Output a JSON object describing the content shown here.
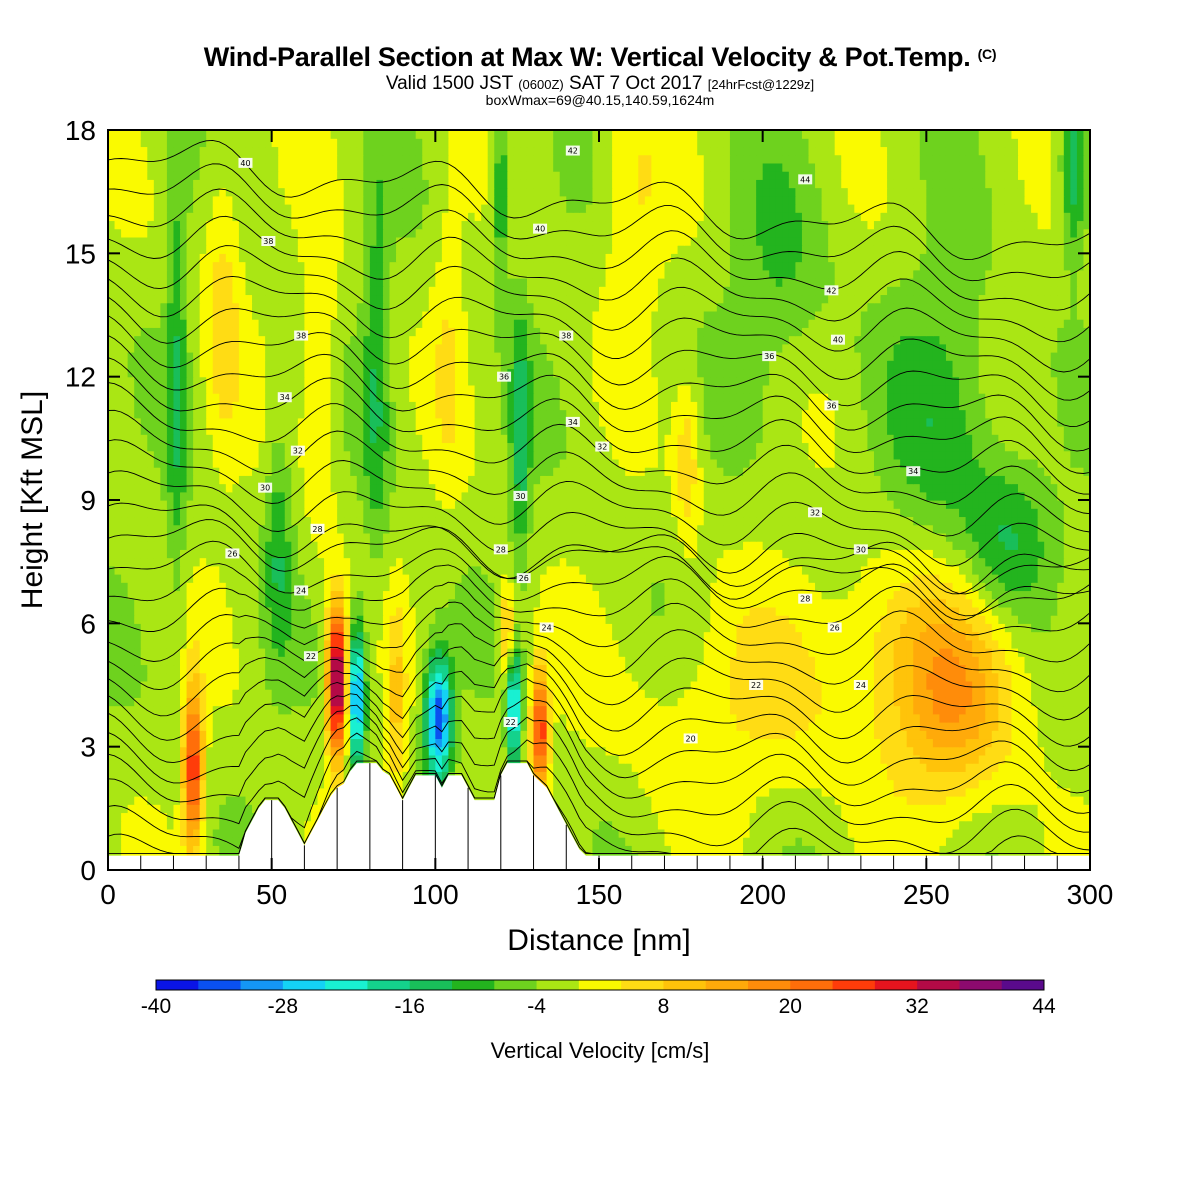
{
  "chart_data": {
    "type": "heatmap",
    "title": "Wind-Parallel Section at Max W: Vertical Velocity & Pot.Temp.",
    "title_mark": "(C)",
    "subtitle_parts": [
      "Valid 1500 JST ",
      "(0600Z)",
      " SAT 7 Oct 2017 ",
      "[24hrFcst@1229z]"
    ],
    "info_line": "boxWmax=69@40.15,140.59,1624m",
    "xlabel": "Distance [nm]",
    "ylabel": "Height [Kft MSL]",
    "xlim": [
      0,
      300
    ],
    "ylim": [
      0,
      18
    ],
    "xticks": [
      0,
      50,
      100,
      150,
      200,
      250,
      300
    ],
    "yticks": [
      0,
      3,
      6,
      9,
      12,
      15,
      18
    ],
    "colorbar": {
      "title": "Vertical Velocity [cm/s]",
      "boundaries": [
        -40,
        -36,
        -32,
        -28,
        -24,
        -20,
        -16,
        -12,
        -8,
        -4,
        0,
        4,
        8,
        12,
        16,
        20,
        24,
        28,
        32,
        36,
        40,
        44
      ],
      "labels": [
        -40,
        -28,
        -16,
        -4,
        8,
        20,
        32,
        44
      ],
      "colors": [
        "#0a14e6",
        "#0a50f0",
        "#1496f5",
        "#14d2f5",
        "#19f0d2",
        "#14d28c",
        "#19be5a",
        "#23b41e",
        "#6ed21e",
        "#aae614",
        "#fafa00",
        "#ffdc14",
        "#ffc30a",
        "#ffaa0a",
        "#ff8c0a",
        "#ff6e0a",
        "#ff3c0a",
        "#e6141e",
        "#b40a46",
        "#8c0a6e",
        "#5a0a8c"
      ]
    },
    "background_level": -2,
    "vv_blobs": [
      {
        "x": 26,
        "y": 2.5,
        "sx": 3,
        "sy": 2.0,
        "v": 30
      },
      {
        "x": 70,
        "y": 4.6,
        "sx": 3,
        "sy": 1.8,
        "v": 44
      },
      {
        "x": 76,
        "y": 4.2,
        "sx": 2.5,
        "sy": 1.8,
        "v": -30
      },
      {
        "x": 101,
        "y": 3.7,
        "sx": 4,
        "sy": 1.5,
        "v": -34
      },
      {
        "x": 124,
        "y": 3.9,
        "sx": 2,
        "sy": 1.5,
        "v": -26
      },
      {
        "x": 132,
        "y": 3.4,
        "sx": 2.5,
        "sy": 1.5,
        "v": 30
      },
      {
        "x": 122,
        "y": 5.8,
        "sx": 2.5,
        "sy": 1.2,
        "v": 14
      },
      {
        "x": 88,
        "y": 3.8,
        "sx": 3,
        "sy": 2.5,
        "v": 10
      },
      {
        "x": 258,
        "y": 3.8,
        "sx": 18,
        "sy": 2.5,
        "v": 13
      },
      {
        "x": 245,
        "y": 5.5,
        "sx": 40,
        "sy": 2.5,
        "v": 7
      },
      {
        "x": 190,
        "y": 3.5,
        "sx": 40,
        "sy": 2.5,
        "v": 5
      },
      {
        "x": 275,
        "y": 8.0,
        "sx": 14,
        "sy": 2.0,
        "v": -10
      },
      {
        "x": 255,
        "y": 11.0,
        "sx": 18,
        "sy": 3.5,
        "v": -8
      },
      {
        "x": 35,
        "y": 14.0,
        "sx": 6,
        "sy": 4.0,
        "v": 8
      },
      {
        "x": 65,
        "y": 12.0,
        "sx": 5,
        "sy": 4.0,
        "v": 8
      },
      {
        "x": 21,
        "y": 12.0,
        "sx": 3,
        "sy": 6.0,
        "v": -9
      },
      {
        "x": 82,
        "y": 12.0,
        "sx": 4,
        "sy": 5.0,
        "v": -9
      },
      {
        "x": 126,
        "y": 10.5,
        "sx": 3,
        "sy": 3.0,
        "v": -12
      },
      {
        "x": 120,
        "y": 16.5,
        "sx": 3,
        "sy": 2.0,
        "v": -12
      },
      {
        "x": 177,
        "y": 10.0,
        "sx": 4,
        "sy": 2.0,
        "v": 9
      },
      {
        "x": 160,
        "y": 16.0,
        "sx": 10,
        "sy": 3.0,
        "v": 6
      },
      {
        "x": 205,
        "y": 14.5,
        "sx": 15,
        "sy": 3.0,
        "v": -6
      },
      {
        "x": 295,
        "y": 17.0,
        "sx": 4,
        "sy": 2.0,
        "v": -14
      },
      {
        "x": 104,
        "y": 13.0,
        "sx": 5,
        "sy": 4.0,
        "v": 5
      },
      {
        "x": 52,
        "y": 8.0,
        "sx": 4,
        "sy": 3.0,
        "v": -9
      }
    ],
    "theta_contours": {
      "base_levels": [
        16,
        17,
        18,
        19,
        20,
        21,
        22,
        23,
        24,
        25,
        26,
        27,
        28,
        29,
        30,
        31,
        32,
        33,
        34,
        35,
        36,
        37,
        38,
        39,
        40,
        41,
        42,
        43,
        44,
        45
      ],
      "labeled": [
        {
          "text": "20",
          "x": 178,
          "y": 3.2
        },
        {
          "text": "22",
          "x": 62,
          "y": 5.2
        },
        {
          "text": "22",
          "x": 198,
          "y": 4.5
        },
        {
          "text": "22",
          "x": 123,
          "y": 3.6
        },
        {
          "text": "24",
          "x": 59,
          "y": 6.8
        },
        {
          "text": "24",
          "x": 134,
          "y": 5.9
        },
        {
          "text": "24",
          "x": 230,
          "y": 4.5
        },
        {
          "text": "26",
          "x": 127,
          "y": 7.1
        },
        {
          "text": "26",
          "x": 222,
          "y": 5.9
        },
        {
          "text": "26",
          "x": 38,
          "y": 7.7
        },
        {
          "text": "28",
          "x": 64,
          "y": 8.3
        },
        {
          "text": "28",
          "x": 120,
          "y": 7.8
        },
        {
          "text": "28",
          "x": 213,
          "y": 6.6
        },
        {
          "text": "30",
          "x": 48,
          "y": 9.3
        },
        {
          "text": "30",
          "x": 126,
          "y": 9.1
        },
        {
          "text": "30",
          "x": 230,
          "y": 7.8
        },
        {
          "text": "32",
          "x": 58,
          "y": 10.2
        },
        {
          "text": "32",
          "x": 151,
          "y": 10.3
        },
        {
          "text": "32",
          "x": 216,
          "y": 8.7
        },
        {
          "text": "34",
          "x": 54,
          "y": 11.5
        },
        {
          "text": "34",
          "x": 142,
          "y": 10.9
        },
        {
          "text": "34",
          "x": 246,
          "y": 9.7
        },
        {
          "text": "36",
          "x": 121,
          "y": 12.0
        },
        {
          "text": "36",
          "x": 202,
          "y": 12.5
        },
        {
          "text": "36",
          "x": 221,
          "y": 11.3
        },
        {
          "text": "38",
          "x": 49,
          "y": 15.3
        },
        {
          "text": "38",
          "x": 59,
          "y": 13.0
        },
        {
          "text": "38",
          "x": 140,
          "y": 13.0
        },
        {
          "text": "40",
          "x": 42,
          "y": 17.2
        },
        {
          "text": "40",
          "x": 132,
          "y": 15.6
        },
        {
          "text": "40",
          "x": 223,
          "y": 12.9
        },
        {
          "text": "42",
          "x": 142,
          "y": 17.5
        },
        {
          "text": "42",
          "x": 221,
          "y": 14.1
        },
        {
          "text": "44",
          "x": 213,
          "y": 16.8
        }
      ]
    },
    "terrain_profile": [
      [
        0,
        0.35
      ],
      [
        40,
        0.35
      ],
      [
        41,
        0.6
      ],
      [
        42,
        0.9
      ],
      [
        44,
        1.2
      ],
      [
        46,
        1.5
      ],
      [
        48,
        1.7
      ],
      [
        52,
        1.7
      ],
      [
        54,
        1.5
      ],
      [
        56,
        1.2
      ],
      [
        58,
        0.9
      ],
      [
        60,
        0.6
      ],
      [
        62,
        0.9
      ],
      [
        64,
        1.2
      ],
      [
        66,
        1.5
      ],
      [
        68,
        1.8
      ],
      [
        70,
        2.0
      ],
      [
        72,
        2.1
      ],
      [
        74,
        2.4
      ],
      [
        76,
        2.6
      ],
      [
        82,
        2.6
      ],
      [
        84,
        2.4
      ],
      [
        86,
        2.3
      ],
      [
        88,
        2.0
      ],
      [
        90,
        1.7
      ],
      [
        92,
        2.0
      ],
      [
        94,
        2.3
      ],
      [
        100,
        2.3
      ],
      [
        102,
        2.0
      ],
      [
        104,
        2.3
      ],
      [
        108,
        2.3
      ],
      [
        110,
        2.0
      ],
      [
        112,
        1.7
      ],
      [
        118,
        1.7
      ],
      [
        120,
        2.3
      ],
      [
        122,
        2.6
      ],
      [
        128,
        2.6
      ],
      [
        130,
        2.3
      ],
      [
        134,
        2.0
      ],
      [
        136,
        1.7
      ],
      [
        138,
        1.4
      ],
      [
        140,
        1.1
      ],
      [
        142,
        0.8
      ],
      [
        144,
        0.5
      ],
      [
        146,
        0.35
      ],
      [
        300,
        0.35
      ]
    ]
  }
}
